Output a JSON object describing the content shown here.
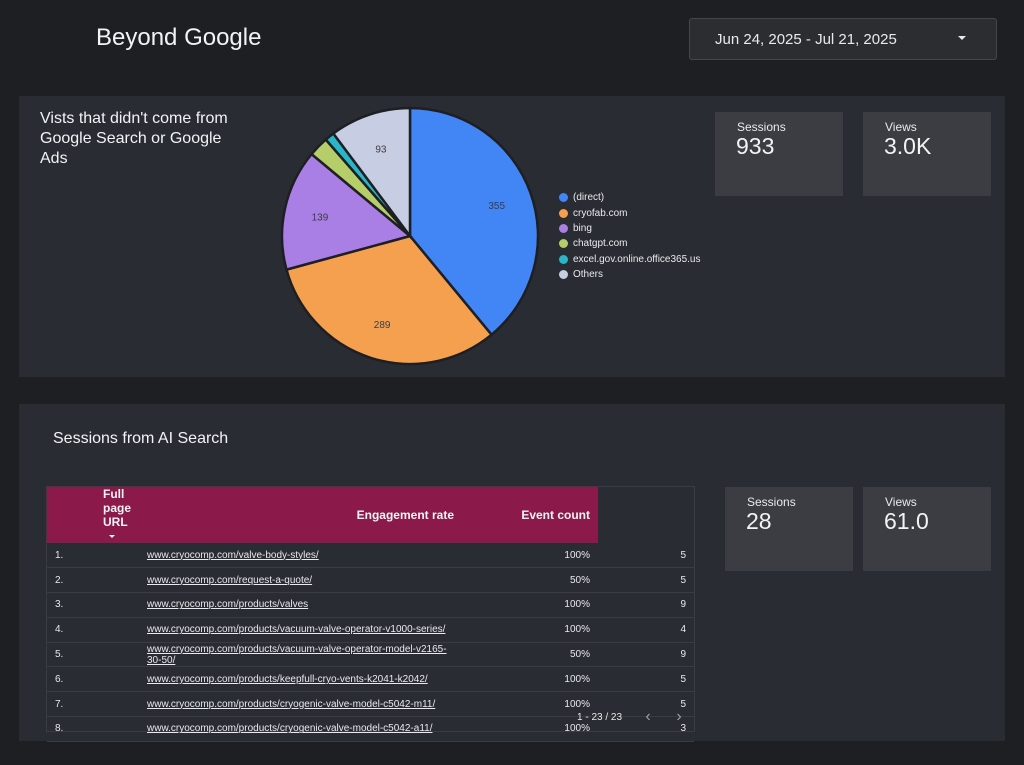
{
  "header": {
    "title": "Beyond Google",
    "date_range": "Jun 24, 2025 - Jul 21, 2025"
  },
  "top_panel": {
    "chart_title": "Vists that didn't come from Google Search or Google Ads",
    "sessions": {
      "label": "Sessions",
      "value": "933"
    },
    "views": {
      "label": "Views",
      "value": "3.0K"
    }
  },
  "chart_data": {
    "type": "pie",
    "title": "Vists that didn't come from Google Search or Google Ads",
    "legend_position": "right",
    "slices": [
      {
        "name": "(direct)",
        "value": 355,
        "color": "#4285f4",
        "label": "355"
      },
      {
        "name": "cryofab.com",
        "value": 289,
        "color": "#f4a04f",
        "label": "289"
      },
      {
        "name": "bing",
        "value": 139,
        "color": "#a97fe6",
        "label": "139"
      },
      {
        "name": "chatgpt.com",
        "value": 23,
        "color": "#b5ce6a",
        "label": ""
      },
      {
        "name": "excel.gov.online.office365.us",
        "value": 11,
        "color": "#28b6c8",
        "label": ""
      },
      {
        "name": "Others",
        "value": 93,
        "color": "#c7cde3",
        "label": "93"
      }
    ]
  },
  "bottom_panel": {
    "title": "Sessions from AI Search",
    "sessions": {
      "label": "Sessions",
      "value": "28"
    },
    "views": {
      "label": "Views",
      "value": "61.0"
    },
    "table": {
      "columns": [
        "Full page URL",
        "Engagement rate",
        "Event count"
      ],
      "rows": [
        {
          "idx": "1.",
          "url": "www.cryocomp.com/valve-body-styles/",
          "rate": "100%",
          "count": "5"
        },
        {
          "idx": "2.",
          "url": "www.cryocomp.com/request-a-quote/",
          "rate": "50%",
          "count": "5"
        },
        {
          "idx": "3.",
          "url": "www.cryocomp.com/products/valves",
          "rate": "100%",
          "count": "9"
        },
        {
          "idx": "4.",
          "url": "www.cryocomp.com/products/vacuum-valve-operator-v1000-series/",
          "rate": "100%",
          "count": "4"
        },
        {
          "idx": "5.",
          "url": "www.cryocomp.com/products/vacuum-valve-operator-model-v2165-30-50/",
          "rate": "50%",
          "count": "9"
        },
        {
          "idx": "6.",
          "url": "www.cryocomp.com/products/keepfull-cryo-vents-k2041-k2042/",
          "rate": "100%",
          "count": "5"
        },
        {
          "idx": "7.",
          "url": "www.cryocomp.com/products/cryogenic-valve-model-c5042-m11/",
          "rate": "100%",
          "count": "5"
        },
        {
          "idx": "8.",
          "url": "www.cryocomp.com/products/cryogenic-valve-model-c5042-a11/",
          "rate": "100%",
          "count": "3"
        }
      ],
      "pagination": "1 - 23 / 23"
    }
  }
}
